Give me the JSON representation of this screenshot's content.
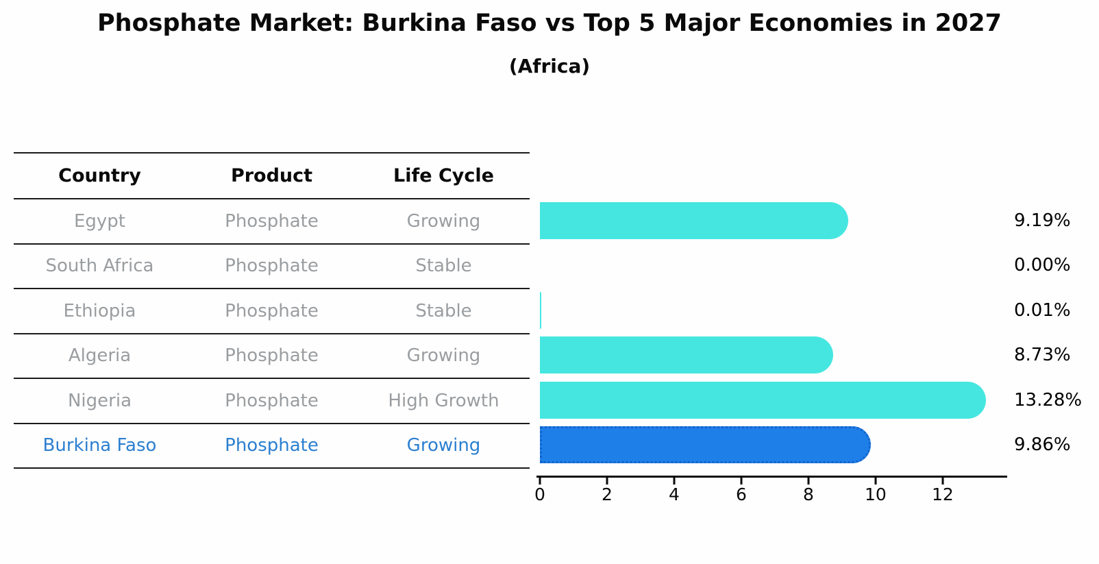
{
  "title": "Phosphate Market: Burkina Faso vs Top 5 Major Economies in 2027",
  "subtitle": "(Africa)",
  "table": {
    "headers": [
      "Country",
      "Product",
      "Life Cycle"
    ],
    "rows": [
      {
        "country": "Egypt",
        "product": "Phosphate",
        "life_cycle": "Growing",
        "highlight": false
      },
      {
        "country": "South Africa",
        "product": "Phosphate",
        "life_cycle": "Stable",
        "highlight": false
      },
      {
        "country": "Ethiopia",
        "product": "Phosphate",
        "life_cycle": "Stable",
        "highlight": false
      },
      {
        "country": "Algeria",
        "product": "Phosphate",
        "life_cycle": "Growing",
        "highlight": false
      },
      {
        "country": "Nigeria",
        "product": "Phosphate",
        "life_cycle": "High Growth",
        "highlight": false
      },
      {
        "country": "Burkina Faso",
        "product": "Phosphate",
        "life_cycle": "Growing",
        "highlight": true
      }
    ]
  },
  "chart_data": {
    "type": "bar",
    "orientation": "horizontal",
    "title": "Phosphate Market: Burkina Faso vs Top 5 Major Economies in 2027",
    "subtitle": "(Africa)",
    "categories": [
      "Egypt",
      "South Africa",
      "Ethiopia",
      "Algeria",
      "Nigeria",
      "Burkina Faso"
    ],
    "values": [
      9.19,
      0.0,
      0.01,
      8.73,
      13.28,
      9.86
    ],
    "value_labels": [
      "9.19%",
      "0.00%",
      "0.01%",
      "8.73%",
      "13.28%",
      "9.86%"
    ],
    "x_ticks": [
      0,
      2,
      4,
      6,
      8,
      10,
      12
    ],
    "xlim": [
      0,
      13.88
    ],
    "grid": false,
    "legend": false,
    "bar_color": "#45e6e0",
    "highlight_index": 5,
    "highlight_bar_color": "#1e7fe8",
    "highlight_border_color": "#1463cb",
    "highlight_text_color": "#2b7fd0",
    "row_text_color": "#9a9da0"
  }
}
